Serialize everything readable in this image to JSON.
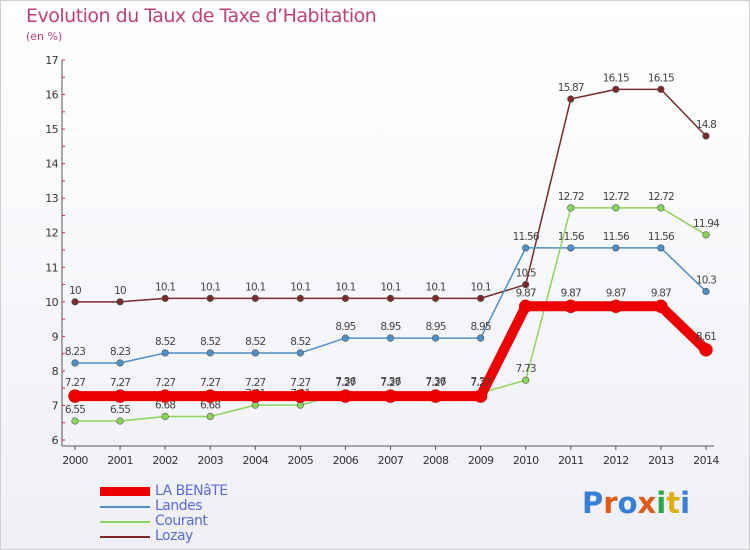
{
  "title": "Evolution du Taux de Taxe d’Habitation",
  "unit_label": "(en %)",
  "logo": {
    "text": "Proxiti",
    "colors": [
      "#3a7fd6",
      "#e05a18",
      "#3a7fd6",
      "#e05a18",
      "#2ba84a",
      "#e0b00f",
      "#3a7fd6"
    ]
  },
  "chart_data": {
    "type": "line",
    "x": [
      2000,
      2001,
      2002,
      2003,
      2004,
      2005,
      2006,
      2007,
      2008,
      2009,
      2010,
      2011,
      2012,
      2013,
      2014
    ],
    "ylim": [
      6,
      17
    ],
    "yticks": [
      6,
      7,
      8,
      9,
      10,
      11,
      12,
      13,
      14,
      15,
      16,
      17
    ],
    "series": [
      {
        "name": "Lozay",
        "color": "#7a2a2a",
        "values": [
          10,
          10,
          10.1,
          10.1,
          10.1,
          10.1,
          10.1,
          10.1,
          10.1,
          10.1,
          10.5,
          15.87,
          16.15,
          16.15,
          14.8
        ],
        "labels": [
          "10",
          "10",
          "10.1",
          "10.1",
          "10.1",
          "10.1",
          "10.1",
          "10.1",
          "10.1",
          "10.1",
          "10.5",
          "15.87",
          "16.15",
          "16.15",
          "14.8"
        ]
      },
      {
        "name": "Landes",
        "color": "#4f8fc8",
        "values": [
          8.23,
          8.23,
          8.52,
          8.52,
          8.52,
          8.52,
          8.95,
          8.95,
          8.95,
          8.95,
          11.56,
          11.56,
          11.56,
          11.56,
          10.3
        ],
        "labels": [
          "8.23",
          "8.23",
          "8.52",
          "8.52",
          "8.52",
          "8.52",
          "8.95",
          "8.95",
          "8.95",
          "8.95",
          "11.56",
          "11.56",
          "11.56",
          "11.56",
          "10.3"
        ]
      },
      {
        "name": "Courant",
        "color": "#8dd55a",
        "values": [
          6.55,
          6.55,
          6.68,
          6.68,
          7.01,
          7.01,
          7.36,
          7.36,
          7.36,
          7.36,
          7.73,
          12.72,
          12.72,
          12.72,
          11.94
        ],
        "labels": [
          "6.55",
          "6.55",
          "6.68",
          "6.68",
          "7.01",
          "7.01",
          "7.36",
          "7.36",
          "7.36",
          "7.36",
          "7.73",
          "12.72",
          "12.72",
          "12.72",
          "11.94"
        ]
      },
      {
        "name": "LA BENâTE",
        "color": "#ee0000",
        "values": [
          7.27,
          7.27,
          7.27,
          7.27,
          7.27,
          7.27,
          7.27,
          7.27,
          7.27,
          7.27,
          9.87,
          9.87,
          9.87,
          9.87,
          8.61
        ],
        "labels": [
          "7.27",
          "7.27",
          "7.27",
          "7.27",
          "7.27",
          "7.27",
          "7.27",
          "7.27",
          "7.27",
          "7.27",
          "9.87",
          "9.87",
          "9.87",
          "9.87",
          "8.61"
        ]
      }
    ],
    "legend_order": [
      "LA BENâTE",
      "Landes",
      "Courant",
      "Lozay"
    ],
    "grid": false,
    "legend_position": "bottom-left"
  }
}
